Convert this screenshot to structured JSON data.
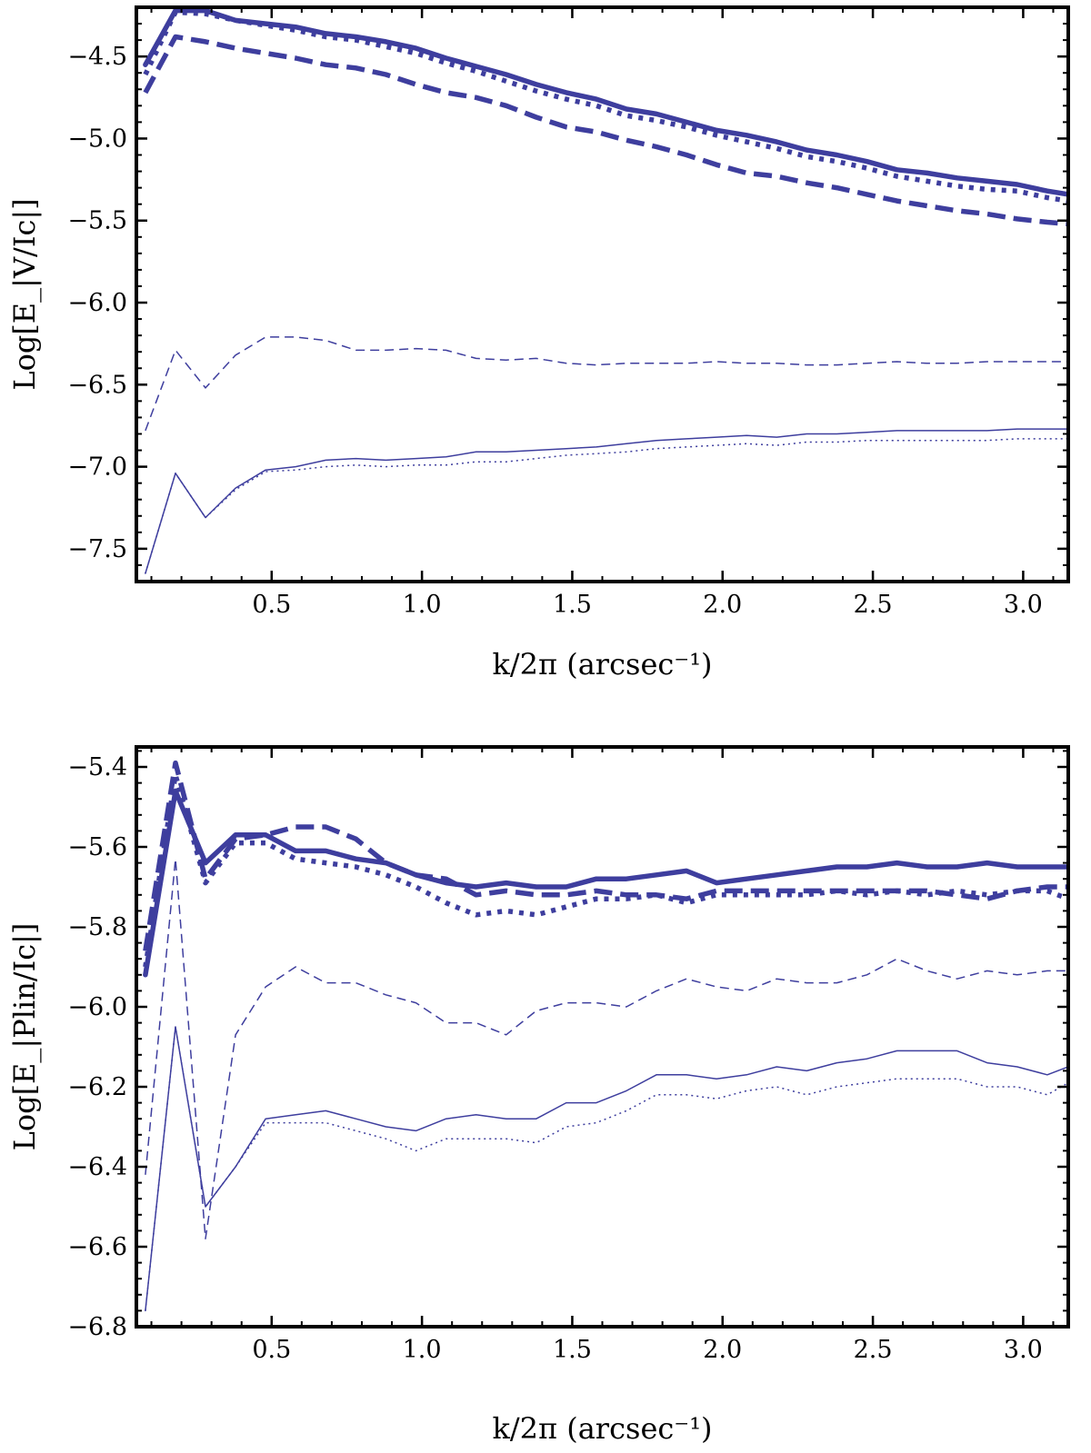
{
  "colors": {
    "series": "#3e3e9e",
    "frame": "#000000"
  },
  "chart_data": [
    {
      "type": "line",
      "xlabel": "k/2π (arcsec⁻¹)",
      "ylabel": "Log[E_|V/Ic|]",
      "xlim": [
        0.05,
        3.15
      ],
      "ylim": [
        -7.7,
        -4.2
      ],
      "xticks": [
        0.5,
        1.0,
        1.5,
        2.0,
        2.5,
        3.0
      ],
      "xtick_labels": [
        "0.5",
        "1.0",
        "1.5",
        "2.0",
        "2.5",
        "3.0"
      ],
      "yticks": [
        -7.5,
        -7.0,
        -6.5,
        -6.0,
        -5.5,
        -5.0,
        -4.5
      ],
      "ytick_labels": [
        "−7.5",
        "−7.0",
        "−6.5",
        "−6.0",
        "−5.5",
        "−5.0",
        "−4.5"
      ],
      "grid": false,
      "x": [
        0.08,
        0.18,
        0.28,
        0.38,
        0.48,
        0.58,
        0.68,
        0.78,
        0.88,
        0.98,
        1.08,
        1.18,
        1.28,
        1.38,
        1.48,
        1.58,
        1.68,
        1.78,
        1.88,
        1.98,
        2.08,
        2.18,
        2.28,
        2.38,
        2.48,
        2.58,
        2.68,
        2.78,
        2.88,
        2.98,
        3.08,
        3.15
      ],
      "series": [
        {
          "style": "thick-solid",
          "values": [
            -4.55,
            -4.22,
            -4.22,
            -4.28,
            -4.3,
            -4.32,
            -4.36,
            -4.38,
            -4.41,
            -4.45,
            -4.51,
            -4.56,
            -4.61,
            -4.67,
            -4.72,
            -4.76,
            -4.82,
            -4.85,
            -4.9,
            -4.95,
            -4.98,
            -5.02,
            -5.07,
            -5.1,
            -5.14,
            -5.19,
            -5.21,
            -5.24,
            -5.26,
            -5.28,
            -5.32,
            -5.34
          ]
        },
        {
          "style": "thick-dotted",
          "values": [
            -4.61,
            -4.23,
            -4.24,
            -4.28,
            -4.31,
            -4.34,
            -4.38,
            -4.4,
            -4.44,
            -4.48,
            -4.54,
            -4.59,
            -4.65,
            -4.71,
            -4.76,
            -4.8,
            -4.86,
            -4.89,
            -4.93,
            -4.98,
            -5.02,
            -5.06,
            -5.11,
            -5.14,
            -5.18,
            -5.23,
            -5.26,
            -5.29,
            -5.31,
            -5.32,
            -5.36,
            -5.38
          ]
        },
        {
          "style": "thick-dashed",
          "values": [
            -4.72,
            -4.38,
            -4.41,
            -4.45,
            -4.48,
            -4.51,
            -4.55,
            -4.57,
            -4.61,
            -4.67,
            -4.72,
            -4.75,
            -4.8,
            -4.87,
            -4.93,
            -4.96,
            -5.01,
            -5.05,
            -5.1,
            -5.16,
            -5.21,
            -5.23,
            -5.27,
            -5.3,
            -5.34,
            -5.38,
            -5.41,
            -5.44,
            -5.46,
            -5.49,
            -5.51,
            -5.52
          ]
        },
        {
          "style": "thin-dashed",
          "values": [
            -6.78,
            -6.29,
            -6.52,
            -6.32,
            -6.21,
            -6.21,
            -6.23,
            -6.29,
            -6.29,
            -6.28,
            -6.29,
            -6.34,
            -6.35,
            -6.34,
            -6.37,
            -6.38,
            -6.37,
            -6.37,
            -6.37,
            -6.36,
            -6.37,
            -6.37,
            -6.38,
            -6.38,
            -6.37,
            -6.36,
            -6.37,
            -6.37,
            -6.36,
            -6.36,
            -6.36,
            -6.36
          ]
        },
        {
          "style": "thin-solid",
          "values": [
            -7.65,
            -7.04,
            -7.31,
            -7.13,
            -7.02,
            -7.0,
            -6.96,
            -6.95,
            -6.96,
            -6.95,
            -6.94,
            -6.91,
            -6.91,
            -6.9,
            -6.89,
            -6.88,
            -6.86,
            -6.84,
            -6.83,
            -6.82,
            -6.81,
            -6.82,
            -6.8,
            -6.8,
            -6.79,
            -6.78,
            -6.78,
            -6.78,
            -6.78,
            -6.77,
            -6.77,
            -6.77
          ]
        },
        {
          "style": "thin-dotted",
          "values": [
            -7.65,
            -7.04,
            -7.31,
            -7.14,
            -7.03,
            -7.02,
            -7.0,
            -6.99,
            -7.0,
            -6.99,
            -6.99,
            -6.97,
            -6.97,
            -6.95,
            -6.93,
            -6.92,
            -6.91,
            -6.89,
            -6.88,
            -6.87,
            -6.86,
            -6.87,
            -6.85,
            -6.85,
            -6.84,
            -6.84,
            -6.84,
            -6.84,
            -6.84,
            -6.83,
            -6.83,
            -6.83
          ]
        }
      ]
    },
    {
      "type": "line",
      "xlabel": "k/2π (arcsec⁻¹)",
      "ylabel": "Log[E_|Plin/Ic|]",
      "xlim": [
        0.05,
        3.15
      ],
      "ylim": [
        -6.8,
        -5.35
      ],
      "xticks": [
        0.5,
        1.0,
        1.5,
        2.0,
        2.5,
        3.0
      ],
      "xtick_labels": [
        "0.5",
        "1.0",
        "1.5",
        "2.0",
        "2.5",
        "3.0"
      ],
      "yticks": [
        -6.8,
        -6.6,
        -6.4,
        -6.2,
        -6.0,
        -5.8,
        -5.6,
        -5.4
      ],
      "ytick_labels": [
        "−6.8",
        "−6.6",
        "−6.4",
        "−6.2",
        "−6.0",
        "−5.8",
        "−5.6",
        "−5.4"
      ],
      "grid": false,
      "x": [
        0.08,
        0.18,
        0.28,
        0.38,
        0.48,
        0.58,
        0.68,
        0.78,
        0.88,
        0.98,
        1.08,
        1.18,
        1.28,
        1.38,
        1.48,
        1.58,
        1.68,
        1.78,
        1.88,
        1.98,
        2.08,
        2.18,
        2.28,
        2.38,
        2.48,
        2.58,
        2.68,
        2.78,
        2.88,
        2.98,
        3.08,
        3.15
      ],
      "series": [
        {
          "style": "thick-solid",
          "values": [
            -5.92,
            -5.46,
            -5.64,
            -5.57,
            -5.57,
            -5.61,
            -5.61,
            -5.63,
            -5.64,
            -5.67,
            -5.69,
            -5.7,
            -5.69,
            -5.7,
            -5.7,
            -5.68,
            -5.68,
            -5.67,
            -5.66,
            -5.69,
            -5.68,
            -5.67,
            -5.66,
            -5.65,
            -5.65,
            -5.64,
            -5.65,
            -5.65,
            -5.64,
            -5.65,
            -5.65,
            -5.65
          ]
        },
        {
          "style": "thick-dashed",
          "values": [
            -5.86,
            -5.39,
            -5.68,
            -5.58,
            -5.57,
            -5.55,
            -5.55,
            -5.58,
            -5.64,
            -5.67,
            -5.68,
            -5.72,
            -5.71,
            -5.72,
            -5.72,
            -5.71,
            -5.72,
            -5.72,
            -5.73,
            -5.71,
            -5.71,
            -5.71,
            -5.71,
            -5.71,
            -5.71,
            -5.71,
            -5.71,
            -5.72,
            -5.73,
            -5.71,
            -5.7,
            -5.7
          ]
        },
        {
          "style": "thick-dotted",
          "values": [
            -5.9,
            -5.42,
            -5.69,
            -5.59,
            -5.59,
            -5.63,
            -5.64,
            -5.65,
            -5.67,
            -5.7,
            -5.74,
            -5.77,
            -5.76,
            -5.77,
            -5.75,
            -5.73,
            -5.73,
            -5.72,
            -5.74,
            -5.72,
            -5.72,
            -5.72,
            -5.72,
            -5.71,
            -5.72,
            -5.71,
            -5.72,
            -5.71,
            -5.72,
            -5.71,
            -5.71,
            -5.73
          ]
        },
        {
          "style": "thin-dashed",
          "values": [
            -6.42,
            -5.63,
            -6.58,
            -6.07,
            -5.95,
            -5.9,
            -5.94,
            -5.94,
            -5.97,
            -5.99,
            -6.04,
            -6.04,
            -6.07,
            -6.01,
            -5.99,
            -5.99,
            -6.0,
            -5.96,
            -5.93,
            -5.95,
            -5.96,
            -5.93,
            -5.94,
            -5.94,
            -5.92,
            -5.88,
            -5.91,
            -5.93,
            -5.91,
            -5.92,
            -5.91,
            -5.91
          ]
        },
        {
          "style": "thin-solid",
          "values": [
            -6.76,
            -6.05,
            -6.5,
            -6.4,
            -6.28,
            -6.27,
            -6.26,
            -6.28,
            -6.3,
            -6.31,
            -6.28,
            -6.27,
            -6.28,
            -6.28,
            -6.24,
            -6.24,
            -6.21,
            -6.17,
            -6.17,
            -6.18,
            -6.17,
            -6.15,
            -6.16,
            -6.14,
            -6.13,
            -6.11,
            -6.11,
            -6.11,
            -6.14,
            -6.15,
            -6.17,
            -6.15
          ]
        },
        {
          "style": "thin-dotted",
          "values": [
            -6.76,
            -6.05,
            -6.5,
            -6.4,
            -6.29,
            -6.29,
            -6.29,
            -6.31,
            -6.33,
            -6.36,
            -6.33,
            -6.33,
            -6.33,
            -6.34,
            -6.3,
            -6.29,
            -6.26,
            -6.22,
            -6.22,
            -6.23,
            -6.21,
            -6.2,
            -6.22,
            -6.2,
            -6.19,
            -6.18,
            -6.18,
            -6.18,
            -6.2,
            -6.2,
            -6.22,
            -6.19
          ]
        }
      ]
    }
  ]
}
